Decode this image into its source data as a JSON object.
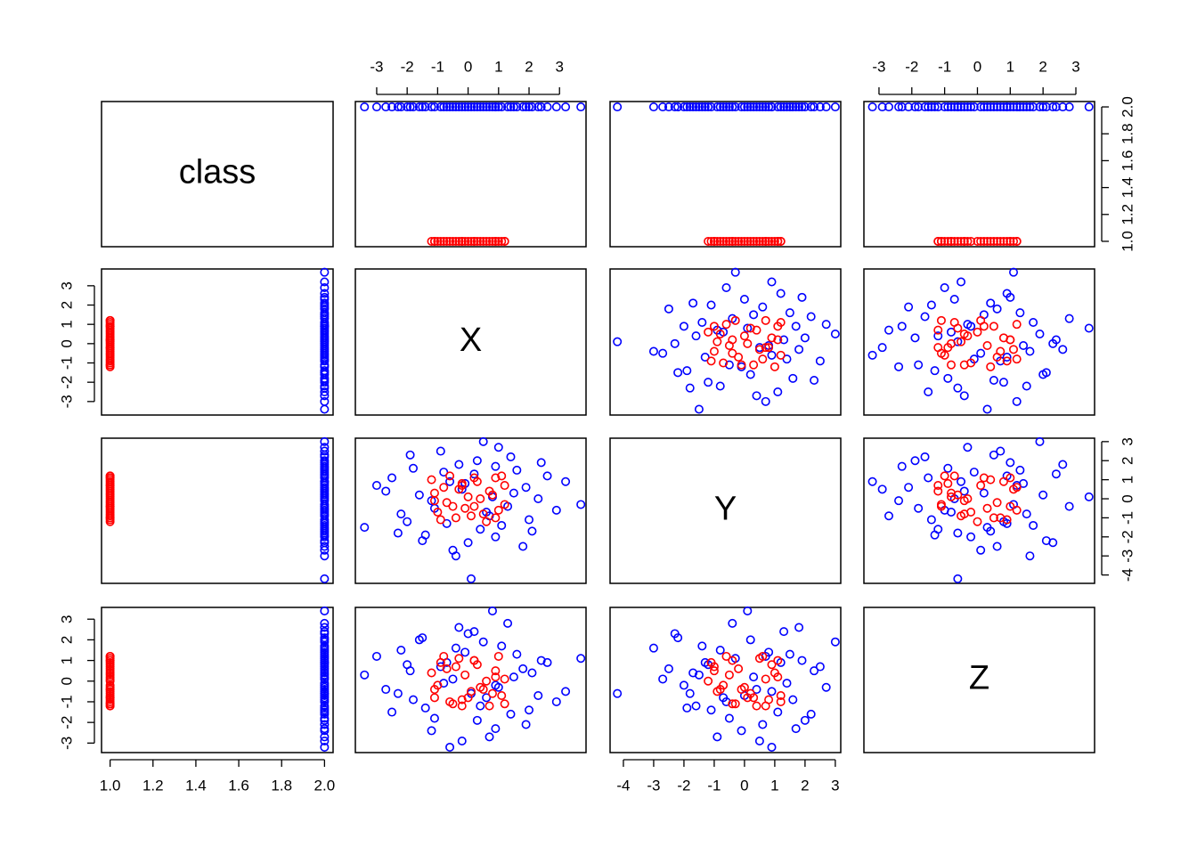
{
  "chart_data": {
    "type": "scatter_matrix",
    "class_colors": [
      "#ff0000",
      "#0000ff"
    ],
    "variables": [
      {
        "name": "class",
        "lim": [
          0.96,
          2.04
        ],
        "ticks": [
          {
            "value": 1,
            "label": "1.0"
          },
          1.2,
          1.4,
          1.6,
          1.8,
          {
            "value": 2,
            "label": "2.0"
          }
        ],
        "values": [
          2,
          2,
          2,
          2,
          2,
          2,
          2,
          2,
          2,
          2,
          2,
          2,
          2,
          2,
          2,
          2,
          2,
          2,
          2,
          2,
          2,
          2,
          2,
          2,
          2,
          2,
          2,
          2,
          2,
          2,
          2,
          2,
          2,
          2,
          2,
          2,
          2,
          2,
          2,
          2,
          2,
          2,
          2,
          2,
          2,
          2,
          2,
          2,
          2,
          2,
          1,
          1,
          1,
          1,
          1,
          1,
          1,
          1,
          1,
          1,
          1,
          1,
          1,
          1,
          1,
          1,
          1,
          1,
          1,
          1,
          1,
          1,
          1,
          1,
          1,
          1,
          1,
          1,
          1,
          1
        ]
      },
      {
        "name": "X",
        "lim": [
          -3.7,
          3.87
        ],
        "ticks": [
          -3,
          -2,
          -1,
          0,
          1,
          2,
          3
        ],
        "values": [
          -3.4,
          3.7,
          0.1,
          0.5,
          -0.6,
          0.8,
          -1.8,
          2.1,
          1.4,
          -2.2,
          0.0,
          -0.9,
          1.9,
          -1.4,
          2.6,
          -2.7,
          0.7,
          -0.3,
          1.1,
          -1.6,
          2.9,
          -0.5,
          0.3,
          -2.0,
          1.6,
          -1.2,
          0.9,
          -0.1,
          2.3,
          -2.5,
          1.3,
          -0.8,
          0.4,
          -1.9,
          1.8,
          -0.2,
          2.4,
          -1.5,
          0.6,
          -3.0,
          1.0,
          -0.7,
          3.2,
          -1.1,
          0.2,
          2.0,
          -2.3,
          1.5,
          -0.4,
          0.9,
          -1.1,
          0.9,
          0.2,
          -0.5,
          1.2,
          -0.9,
          0.4,
          -0.2,
          1.0,
          -1.2,
          0.7,
          -0.7,
          0.1,
          1.1,
          -0.3,
          0.6,
          -1.0,
          0.3,
          -0.6,
          0.8,
          -0.1,
          1.2,
          -0.8,
          0.5,
          -0.4,
          0.0,
          0.9,
          -1.1,
          0.2,
          -0.2
        ]
      },
      {
        "name": "Y",
        "lim": [
          -4.44,
          3.18
        ],
        "ticks": [
          -4,
          -3,
          -2,
          -1,
          0,
          1,
          2,
          3
        ],
        "values": [
          -1.5,
          -0.3,
          -4.2,
          3.0,
          0.9,
          0.1,
          1.6,
          -1.7,
          2.2,
          -0.8,
          -2.3,
          2.5,
          0.6,
          -1.9,
          1.2,
          0.4,
          -0.9,
          1.8,
          -1.4,
          0.2,
          -0.6,
          -2.7,
          2.0,
          -1.2,
          1.5,
          -0.1,
          -2.0,
          0.8,
          0.0,
          1.1,
          -0.4,
          1.4,
          -1.6,
          2.3,
          -2.5,
          0.5,
          1.9,
          -2.2,
          -0.7,
          0.7,
          2.7,
          -1.3,
          0.9,
          -0.5,
          1.3,
          -1.1,
          -1.8,
          0.3,
          -3.0,
          1.7,
          0.3,
          -1.0,
          1.1,
          -0.4,
          0.7,
          -1.1,
          0.0,
          0.8,
          -0.6,
          1.0,
          0.4,
          -0.2,
          -0.9,
          1.2,
          0.5,
          -1.2,
          -0.7,
          0.9,
          1.2,
          0.2,
          -0.5,
          -0.3,
          0.6,
          -0.8,
          -1.0,
          0.1,
          1.1,
          -0.1,
          -0.4,
          0.7
        ]
      },
      {
        "name": "Z",
        "lim": [
          -3.46,
          3.57
        ],
        "ticks": [
          -3,
          -2,
          -1,
          0,
          1,
          2,
          3
        ],
        "values": [
          0.3,
          1.1,
          -0.6,
          1.9,
          -3.2,
          3.4,
          -0.9,
          0.4,
          -1.6,
          1.5,
          2.3,
          0.7,
          -2.1,
          -1.3,
          0.9,
          -0.4,
          -2.7,
          2.6,
          1.7,
          2.0,
          -1.0,
          0.1,
          -1.9,
          0.8,
          1.3,
          -2.4,
          -0.2,
          1.4,
          -0.7,
          -1.5,
          2.8,
          -0.1,
          -1.2,
          0.5,
          0.6,
          -2.9,
          1.0,
          2.1,
          -0.8,
          1.2,
          -0.3,
          0.9,
          -0.5,
          -1.8,
          2.4,
          -1.4,
          -0.6,
          0.2,
          1.6,
          -2.3,
          -0.8,
          0.5,
          1.0,
          -1.1,
          0.1,
          0.9,
          -0.3,
          -0.9,
          1.2,
          0.4,
          -1.2,
          0.6,
          -0.5,
          -0.7,
          1.1,
          0.0,
          -0.2,
          0.8,
          -1.0,
          -0.6,
          0.3,
          -1.1,
          1.2,
          -0.4,
          0.7,
          -0.8,
          0.2,
          -0.4,
          1.0,
          -1.2
        ]
      }
    ]
  }
}
